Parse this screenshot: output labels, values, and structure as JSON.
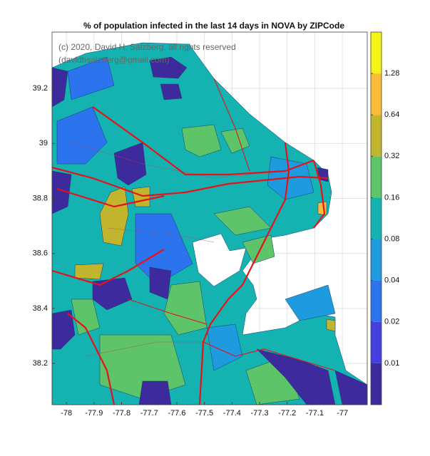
{
  "title": "% of population infected in the last 14 days in NOVA by ZIPCode",
  "watermark": [
    "(c) 2020, David H. Salzberg, all rights reserved",
    "(davidhsalzberg@gmail.com)"
  ],
  "x_axis": {
    "lim": [
      -78.052,
      -76.91
    ],
    "ticks": [
      -78,
      -77.9,
      -77.8,
      -77.7,
      -77.6,
      -77.5,
      -77.4,
      -77.3,
      -77.2,
      -77.1,
      -77
    ]
  },
  "y_axis": {
    "lim": [
      38.05,
      39.405
    ],
    "ticks": [
      38.2,
      38.4,
      38.6,
      38.8,
      39,
      39.2
    ]
  },
  "colorbar": {
    "scale": "log",
    "lim": [
      0.005,
      2.56
    ],
    "ticks": [
      0.01,
      0.02,
      0.04,
      0.08,
      0.16,
      0.32,
      0.64,
      1.28
    ],
    "colors": [
      "#3d2a9c",
      "#4440e0",
      "#2c74ee",
      "#1e9ade",
      "#14b3b2",
      "#5dc46a",
      "#c2b52e",
      "#fbbc3c",
      "#f4f418"
    ]
  },
  "grid": true
}
